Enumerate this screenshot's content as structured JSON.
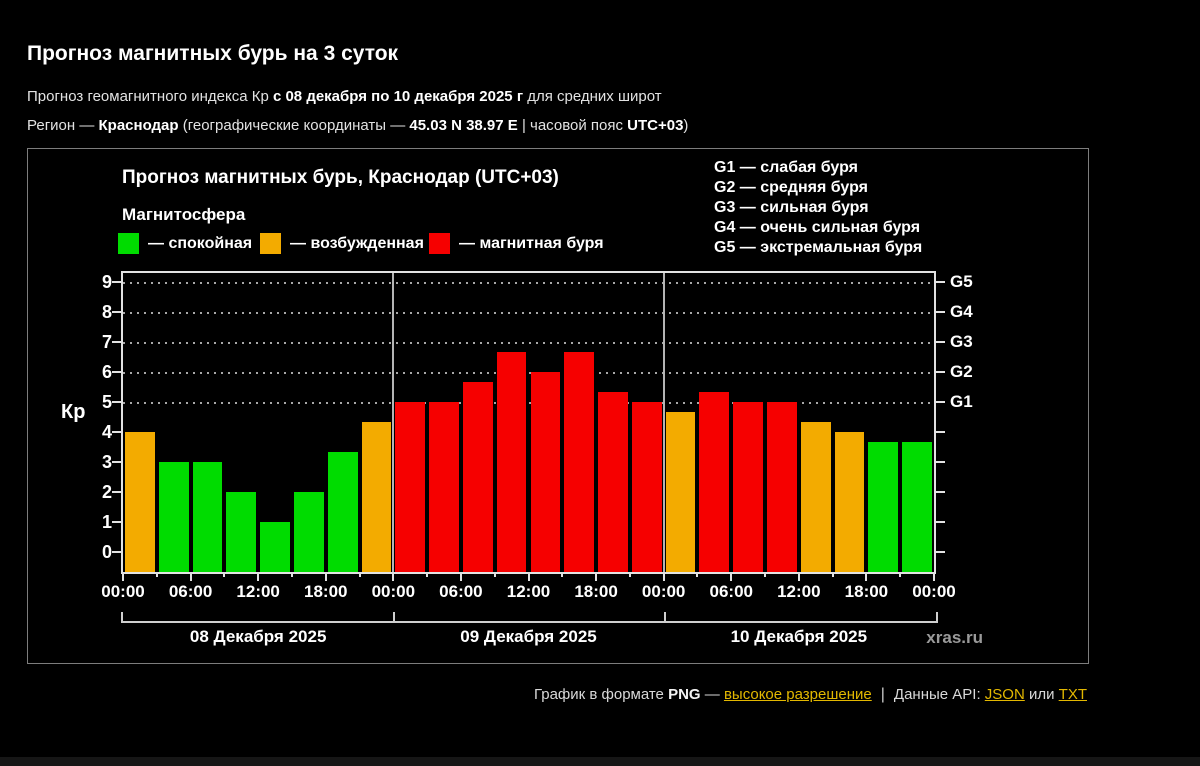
{
  "page": {
    "title": "Прогноз магнитных бурь на 3 суток",
    "subtitle": {
      "pre": "Прогноз геомагнитного индекса Кр ",
      "bold": "с 08 декабря по 10 декабря 2025 г",
      "post": " для средних широт"
    },
    "region": {
      "label": "Регион — ",
      "city": "Краснодар",
      "mid": " (географические координаты — ",
      "coords": "45.03 N 38.97 E",
      "sep": " | часовой пояс ",
      "tz": "UTC+03",
      "close": ")"
    }
  },
  "colors": {
    "quiet": "#00dc00",
    "active": "#f3ab00",
    "storm": "#f60000",
    "link": "#e3b800",
    "watermark": "#9a9a9a"
  },
  "chart": {
    "title": "Прогноз магнитных бурь, Краснодар (UTC+03)",
    "legend_title": "Магнитосфера",
    "legend": [
      {
        "label": "— спокойная",
        "color": "#00dc00"
      },
      {
        "label": "— возбужденная",
        "color": "#f3ab00"
      },
      {
        "label": "— магнитная буря",
        "color": "#f60000"
      }
    ],
    "g_scale": [
      "G1 — слабая буря",
      "G2 — средняя буря",
      "G3 — сильная буря",
      "G4 — очень сильная буря",
      "G5 — экстремальная буря"
    ],
    "watermark": "xras.ru"
  },
  "chart_data": {
    "type": "bar",
    "title": "Прогноз магнитных бурь, Краснодар (UTC+03)",
    "ylabel": "Кр",
    "ylim": [
      0,
      9
    ],
    "y_ticks": [
      "0",
      "1",
      "2",
      "3",
      "4",
      "5",
      "6",
      "7",
      "8",
      "9"
    ],
    "right_axis_labels": [
      "G1",
      "G2",
      "G3",
      "G4",
      "G5"
    ],
    "right_axis_levels": [
      5,
      6,
      7,
      8,
      9
    ],
    "grid_levels": [
      5,
      6,
      7,
      8,
      9
    ],
    "x_tick_labels": [
      "00:00",
      "06:00",
      "12:00",
      "18:00",
      "00:00",
      "06:00",
      "12:00",
      "18:00",
      "00:00",
      "06:00",
      "12:00",
      "18:00",
      "00:00"
    ],
    "hours_per_bar": 3,
    "days": [
      {
        "date": "08 Декабря 2025",
        "values": [
          4,
          3,
          3,
          2,
          1,
          2,
          3.33,
          4.33
        ]
      },
      {
        "date": "09 Декабря 2025",
        "values": [
          5,
          5,
          5.67,
          6.67,
          6,
          6.67,
          5.33,
          5
        ]
      },
      {
        "date": "10 Декабря 2025",
        "values": [
          4.67,
          5.33,
          5,
          5,
          4.33,
          4,
          3.67,
          3.67
        ]
      }
    ],
    "color_rule": {
      "quiet_below": 4,
      "storm_from": 5
    }
  },
  "footer": {
    "text_pre": "График в формате ",
    "png": "PNG",
    "dash": " — ",
    "link_hires": "высокое разрешение",
    "sep": "|",
    "api_label": "Данные API: ",
    "link_json": "JSON",
    "or": " или ",
    "link_txt": "TXT"
  }
}
